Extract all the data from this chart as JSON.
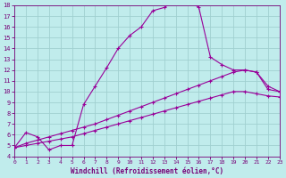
{
  "background_color": "#c0ecec",
  "grid_color": "#a0d0d0",
  "line_color": "#990099",
  "xlabel": "Windchill (Refroidissement éolien,°C)",
  "xlabel_color": "#770077",
  "tick_color": "#770077",
  "xmin": 0,
  "xmax": 23,
  "ymin": 4,
  "ymax": 18,
  "line1_x": [
    0,
    1,
    2,
    3,
    4,
    5,
    6,
    7,
    8,
    9,
    10,
    11,
    12,
    13,
    14,
    15,
    16,
    17,
    18,
    19,
    20,
    21,
    22,
    23
  ],
  "line1_y": [
    4.8,
    6.2,
    5.8,
    4.6,
    5.0,
    5.0,
    8.8,
    10.5,
    12.2,
    14.0,
    15.2,
    16.0,
    17.5,
    17.8,
    18.5,
    18.5,
    17.8,
    13.2,
    12.5,
    12.0,
    12.0,
    11.8,
    10.2,
    10.0
  ],
  "line2_x": [
    0,
    1,
    2,
    3,
    4,
    5,
    6,
    7,
    8,
    9,
    10,
    11,
    12,
    13,
    14,
    15,
    16,
    17,
    18,
    19,
    20,
    21,
    22,
    23
  ],
  "line2_y": [
    4.8,
    5.2,
    5.5,
    5.8,
    6.1,
    6.4,
    6.7,
    7.0,
    7.4,
    7.8,
    8.2,
    8.6,
    9.0,
    9.4,
    9.8,
    10.2,
    10.6,
    11.0,
    11.4,
    11.8,
    12.0,
    11.8,
    10.5,
    10.0
  ],
  "line3_x": [
    0,
    1,
    2,
    3,
    4,
    5,
    6,
    7,
    8,
    9,
    10,
    11,
    12,
    13,
    14,
    15,
    16,
    17,
    18,
    19,
    20,
    21,
    22,
    23
  ],
  "line3_y": [
    4.8,
    5.0,
    5.2,
    5.4,
    5.6,
    5.8,
    6.1,
    6.4,
    6.7,
    7.0,
    7.3,
    7.6,
    7.9,
    8.2,
    8.5,
    8.8,
    9.1,
    9.4,
    9.7,
    10.0,
    10.0,
    9.8,
    9.6,
    9.5
  ]
}
